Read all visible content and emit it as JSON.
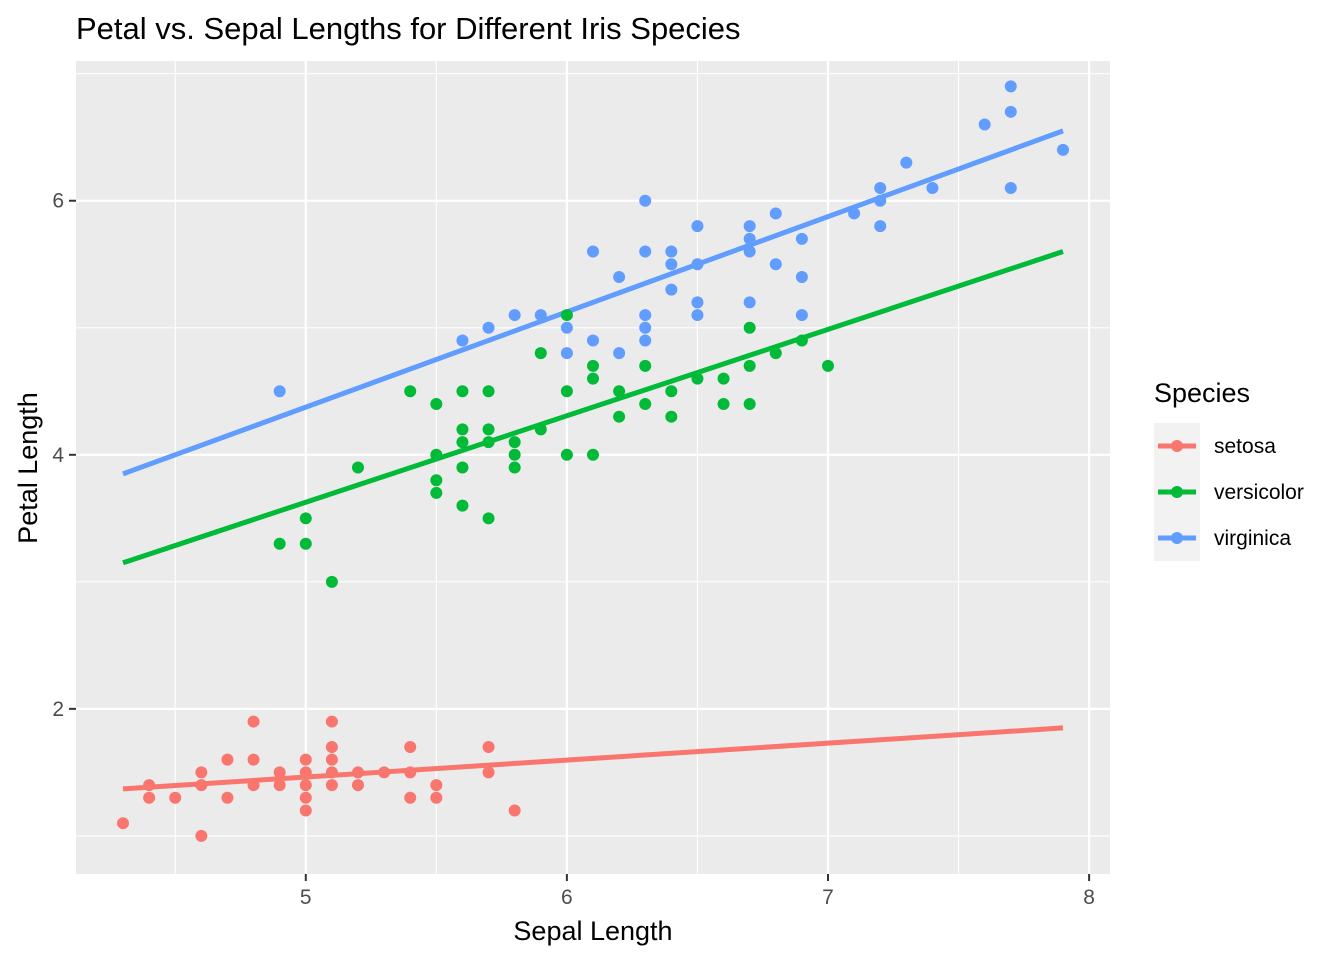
{
  "chart_data": {
    "type": "scatter",
    "title": "Petal vs. Sepal Lengths for Different Iris Species",
    "xlabel": "Sepal Length",
    "ylabel": "Petal Length",
    "xlim": [
      4.12,
      8.08
    ],
    "ylim": [
      0.7,
      7.1
    ],
    "x_ticks": [
      5,
      6,
      7,
      8
    ],
    "y_ticks": [
      2,
      4,
      6
    ],
    "grid": true,
    "legend": {
      "title": "Species",
      "position": "right"
    },
    "series": [
      {
        "name": "setosa",
        "color": "#F8766D",
        "points": [
          [
            4.3,
            1.1
          ],
          [
            4.4,
            1.3
          ],
          [
            4.4,
            1.4
          ],
          [
            4.5,
            1.3
          ],
          [
            4.6,
            1.0
          ],
          [
            4.6,
            1.4
          ],
          [
            4.6,
            1.5
          ],
          [
            4.7,
            1.3
          ],
          [
            4.7,
            1.6
          ],
          [
            4.8,
            1.4
          ],
          [
            4.8,
            1.6
          ],
          [
            4.8,
            1.9
          ],
          [
            4.9,
            1.4
          ],
          [
            4.9,
            1.5
          ],
          [
            5.0,
            1.2
          ],
          [
            5.0,
            1.3
          ],
          [
            5.0,
            1.4
          ],
          [
            5.0,
            1.5
          ],
          [
            5.0,
            1.6
          ],
          [
            5.1,
            1.4
          ],
          [
            5.1,
            1.5
          ],
          [
            5.1,
            1.6
          ],
          [
            5.1,
            1.7
          ],
          [
            5.1,
            1.9
          ],
          [
            5.2,
            1.4
          ],
          [
            5.2,
            1.5
          ],
          [
            5.3,
            1.5
          ],
          [
            5.4,
            1.3
          ],
          [
            5.4,
            1.5
          ],
          [
            5.4,
            1.7
          ],
          [
            5.5,
            1.3
          ],
          [
            5.5,
            1.4
          ],
          [
            5.7,
            1.5
          ],
          [
            5.7,
            1.7
          ],
          [
            5.8,
            1.2
          ]
        ],
        "fit": {
          "x": [
            4.3,
            7.9
          ],
          "y": [
            1.37,
            1.85
          ]
        }
      },
      {
        "name": "versicolor",
        "color": "#00BA38",
        "points": [
          [
            4.9,
            3.3
          ],
          [
            5.0,
            3.3
          ],
          [
            5.0,
            3.5
          ],
          [
            5.1,
            3.0
          ],
          [
            5.2,
            3.9
          ],
          [
            5.4,
            4.5
          ],
          [
            5.5,
            3.7
          ],
          [
            5.5,
            3.8
          ],
          [
            5.5,
            4.0
          ],
          [
            5.5,
            4.4
          ],
          [
            5.6,
            3.6
          ],
          [
            5.6,
            3.9
          ],
          [
            5.6,
            4.1
          ],
          [
            5.6,
            4.2
          ],
          [
            5.6,
            4.5
          ],
          [
            5.7,
            3.5
          ],
          [
            5.7,
            4.1
          ],
          [
            5.7,
            4.2
          ],
          [
            5.7,
            4.5
          ],
          [
            5.8,
            3.9
          ],
          [
            5.8,
            4.0
          ],
          [
            5.8,
            4.1
          ],
          [
            5.9,
            4.2
          ],
          [
            5.9,
            4.8
          ],
          [
            6.0,
            4.0
          ],
          [
            6.0,
            4.5
          ],
          [
            6.0,
            5.1
          ],
          [
            6.1,
            4.0
          ],
          [
            6.1,
            4.6
          ],
          [
            6.1,
            4.7
          ],
          [
            6.2,
            4.3
          ],
          [
            6.2,
            4.5
          ],
          [
            6.3,
            4.4
          ],
          [
            6.3,
            4.7
          ],
          [
            6.4,
            4.3
          ],
          [
            6.4,
            4.5
          ],
          [
            6.5,
            4.6
          ],
          [
            6.6,
            4.4
          ],
          [
            6.6,
            4.6
          ],
          [
            6.7,
            4.4
          ],
          [
            6.7,
            4.7
          ],
          [
            6.7,
            5.0
          ],
          [
            6.8,
            4.8
          ],
          [
            6.9,
            4.9
          ],
          [
            7.0,
            4.7
          ]
        ],
        "fit": {
          "x": [
            4.3,
            7.9
          ],
          "y": [
            3.15,
            5.6
          ]
        }
      },
      {
        "name": "virginica",
        "color": "#619CFF",
        "points": [
          [
            4.9,
            4.5
          ],
          [
            5.6,
            4.9
          ],
          [
            5.7,
            5.0
          ],
          [
            5.8,
            5.1
          ],
          [
            5.9,
            5.1
          ],
          [
            6.0,
            4.8
          ],
          [
            6.0,
            5.0
          ],
          [
            6.1,
            4.9
          ],
          [
            6.1,
            5.6
          ],
          [
            6.2,
            4.8
          ],
          [
            6.2,
            5.4
          ],
          [
            6.3,
            4.9
          ],
          [
            6.3,
            5.0
          ],
          [
            6.3,
            5.1
          ],
          [
            6.3,
            5.6
          ],
          [
            6.3,
            6.0
          ],
          [
            6.4,
            5.3
          ],
          [
            6.4,
            5.5
          ],
          [
            6.4,
            5.6
          ],
          [
            6.5,
            5.1
          ],
          [
            6.5,
            5.2
          ],
          [
            6.5,
            5.5
          ],
          [
            6.5,
            5.8
          ],
          [
            6.7,
            5.2
          ],
          [
            6.7,
            5.6
          ],
          [
            6.7,
            5.7
          ],
          [
            6.7,
            5.8
          ],
          [
            6.8,
            5.5
          ],
          [
            6.8,
            5.9
          ],
          [
            6.9,
            5.1
          ],
          [
            6.9,
            5.4
          ],
          [
            6.9,
            5.7
          ],
          [
            7.1,
            5.9
          ],
          [
            7.2,
            5.8
          ],
          [
            7.2,
            6.0
          ],
          [
            7.2,
            6.1
          ],
          [
            7.3,
            6.3
          ],
          [
            7.4,
            6.1
          ],
          [
            7.6,
            6.6
          ],
          [
            7.7,
            6.1
          ],
          [
            7.7,
            6.7
          ],
          [
            7.7,
            6.9
          ],
          [
            7.9,
            6.4
          ]
        ],
        "fit": {
          "x": [
            4.3,
            7.9
          ],
          "y": [
            3.85,
            6.55
          ]
        }
      }
    ]
  }
}
